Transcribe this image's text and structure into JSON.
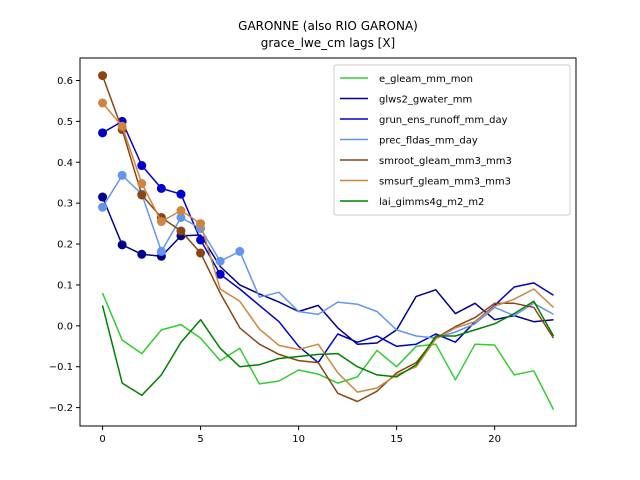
{
  "chart_data": {
    "type": "line",
    "title_line1": "GARONNE (also RIO GARONA)",
    "title_line2": "grace_lwe_cm lags [X]",
    "xlabel": "",
    "ylabel": "",
    "xlim": [
      -1.15,
      24.15
    ],
    "ylim": [
      -0.245,
      0.655
    ],
    "xticks": [
      0,
      5,
      10,
      15,
      20
    ],
    "yticks": [
      -0.2,
      -0.1,
      0.0,
      0.1,
      0.2,
      0.3,
      0.4,
      0.5,
      0.6
    ],
    "ytick_labels": [
      "−0.2",
      "−0.1",
      "0.0",
      "0.1",
      "0.2",
      "0.3",
      "0.4",
      "0.5",
      "0.6"
    ],
    "legend_position": "top-right",
    "grid": false,
    "x": [
      0,
      1,
      2,
      3,
      4,
      5,
      6,
      7,
      8,
      9,
      10,
      11,
      12,
      13,
      14,
      15,
      16,
      17,
      18,
      19,
      20,
      21,
      22,
      23
    ],
    "series": [
      {
        "name": "e_gleam_mm_mon",
        "color": "#32cd32",
        "values": [
          0.08,
          -0.035,
          -0.068,
          -0.01,
          0.003,
          -0.03,
          -0.085,
          -0.055,
          -0.142,
          -0.135,
          -0.108,
          -0.118,
          -0.14,
          -0.125,
          -0.06,
          -0.1,
          -0.05,
          -0.045,
          -0.132,
          -0.045,
          -0.047,
          -0.12,
          -0.11,
          -0.205
        ],
        "markers": []
      },
      {
        "name": "glws2_gwater_mm",
        "color": "#00008b",
        "values": [
          0.315,
          0.198,
          0.175,
          0.17,
          0.22,
          0.222,
          0.145,
          0.1,
          0.078,
          0.058,
          0.035,
          0.05,
          -0.005,
          -0.045,
          -0.042,
          -0.01,
          0.072,
          0.088,
          0.03,
          0.055,
          0.015,
          0.025,
          0.01,
          0.015
        ],
        "markers": [
          0,
          1,
          2,
          3,
          4
        ]
      },
      {
        "name": "grun_ens_runoff_mm_day",
        "color": "#0000cd",
        "values": [
          0.472,
          0.5,
          0.392,
          0.336,
          0.322,
          0.21,
          0.126,
          0.09,
          0.05,
          0.01,
          -0.05,
          -0.09,
          -0.02,
          -0.04,
          -0.025,
          -0.05,
          -0.045,
          -0.02,
          -0.04,
          0.01,
          0.05,
          0.095,
          0.105,
          0.075
        ],
        "markers": [
          0,
          1,
          2,
          3,
          4,
          5,
          6
        ]
      },
      {
        "name": "prec_fldas_mm_day",
        "color": "#6495ed",
        "values": [
          0.29,
          0.368,
          0.322,
          0.182,
          0.265,
          0.238,
          0.158,
          0.182,
          0.07,
          0.082,
          0.035,
          0.028,
          0.058,
          0.053,
          0.035,
          -0.01,
          -0.025,
          -0.03,
          -0.015,
          0.005,
          0.045,
          0.025,
          0.055,
          0.028
        ],
        "markers": [
          0,
          1,
          2,
          3,
          4,
          5,
          6,
          7
        ]
      },
      {
        "name": "smroot_gleam_mm3_mm3",
        "color": "#8b4513",
        "values": [
          0.612,
          0.48,
          0.32,
          0.265,
          0.232,
          0.178,
          0.08,
          -0.005,
          -0.045,
          -0.07,
          -0.085,
          -0.09,
          -0.165,
          -0.185,
          -0.16,
          -0.115,
          -0.09,
          -0.03,
          -0.002,
          0.02,
          0.055,
          0.055,
          0.045,
          -0.03
        ],
        "markers": [
          0,
          1,
          2,
          3,
          4,
          5
        ]
      },
      {
        "name": "smsurf_gleam_mm3_mm3",
        "color": "#cd853f",
        "values": [
          0.545,
          0.488,
          0.348,
          0.255,
          0.282,
          0.25,
          0.09,
          0.06,
          -0.008,
          -0.048,
          -0.058,
          -0.045,
          -0.115,
          -0.162,
          -0.152,
          -0.12,
          -0.1,
          -0.032,
          -0.005,
          0.01,
          0.048,
          0.065,
          0.09,
          0.045
        ],
        "markers": [
          0,
          1,
          2,
          3,
          4,
          5
        ]
      },
      {
        "name": "lai_gimms4g_m2_m2",
        "color": "#008000",
        "values": [
          0.05,
          -0.14,
          -0.17,
          -0.12,
          -0.04,
          0.015,
          -0.055,
          -0.1,
          -0.095,
          -0.08,
          -0.075,
          -0.07,
          -0.068,
          -0.1,
          -0.12,
          -0.125,
          -0.095,
          -0.025,
          -0.025,
          -0.01,
          0.005,
          0.03,
          0.06,
          -0.025
        ],
        "markers": []
      }
    ]
  }
}
